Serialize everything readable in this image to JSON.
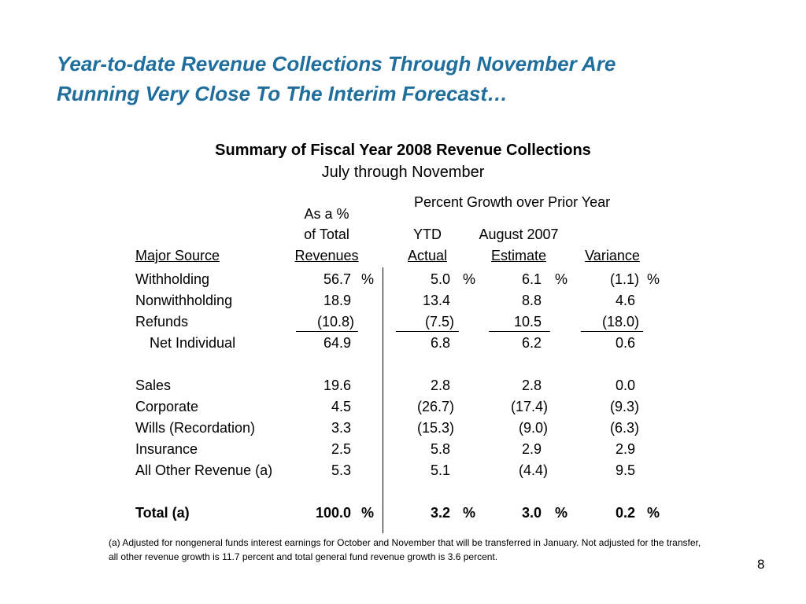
{
  "title": {
    "line1": "Year-to-date Revenue Collections Through November Are",
    "line2": "Running Very Close To The Interim Forecast…"
  },
  "table_title": "Summary of Fiscal Year 2008 Revenue Collections",
  "table_subtitle": "July through November",
  "headers": {
    "growth_group": "Percent Growth over Prior Year",
    "revenues_line1": "As a %",
    "revenues_line2": "of Total",
    "revenues_line3": "Revenues",
    "ytd_line1": "YTD",
    "ytd_line2": "Actual",
    "estimate_line1": "August 2007",
    "estimate_line2": "Estimate",
    "variance": "Variance",
    "source": "Major Source"
  },
  "rows": [
    {
      "label": "Withholding",
      "revenues": "56.7",
      "rev_pct": "%",
      "ytd": "5.0",
      "ytd_pct": "%",
      "estimate": "6.1",
      "est_pct": "%",
      "variance": "(1.1)",
      "var_pct": "%"
    },
    {
      "label": "Nonwithholding",
      "revenues": "18.9",
      "ytd": "13.4",
      "estimate": "8.8",
      "variance": "4.6"
    },
    {
      "label": "Refunds",
      "revenues": "(10.8)",
      "ytd": "(7.5)",
      "estimate": "10.5",
      "variance": "(18.0)"
    },
    {
      "label": "Net Individual",
      "revenues": "64.9",
      "ytd": "6.8",
      "estimate": "6.2",
      "variance": "0.6"
    },
    {
      "label": "Sales",
      "revenues": "19.6",
      "ytd": "2.8",
      "estimate": "2.8",
      "variance": "0.0"
    },
    {
      "label": "Corporate",
      "revenues": "4.5",
      "ytd": "(26.7)",
      "estimate": "(17.4)",
      "variance": "(9.3)"
    },
    {
      "label": "Wills (Recordation)",
      "revenues": "3.3",
      "ytd": "(15.3)",
      "estimate": "(9.0)",
      "variance": "(6.3)"
    },
    {
      "label": "Insurance",
      "revenues": "2.5",
      "ytd": "5.8",
      "estimate": "2.9",
      "variance": "2.9"
    },
    {
      "label": "All Other Revenue (a)",
      "revenues": "5.3",
      "ytd": "5.1",
      "estimate": "(4.4)",
      "variance": "9.5"
    },
    {
      "label": "Total (a)",
      "revenues": "100.0",
      "rev_pct": "%",
      "ytd": "3.2",
      "ytd_pct": "%",
      "estimate": "3.0",
      "est_pct": "%",
      "variance": "0.2",
      "var_pct": "%"
    }
  ],
  "footnote": "(a) Adjusted for nongeneral funds interest earnings for October and November that will be transferred in January.  Not adjusted for the transfer, all other revenue growth is 11.7 percent and total general fund revenue growth is 3.6 percent.",
  "page_number": "8",
  "colors": {
    "title": "#1f6e9c"
  }
}
